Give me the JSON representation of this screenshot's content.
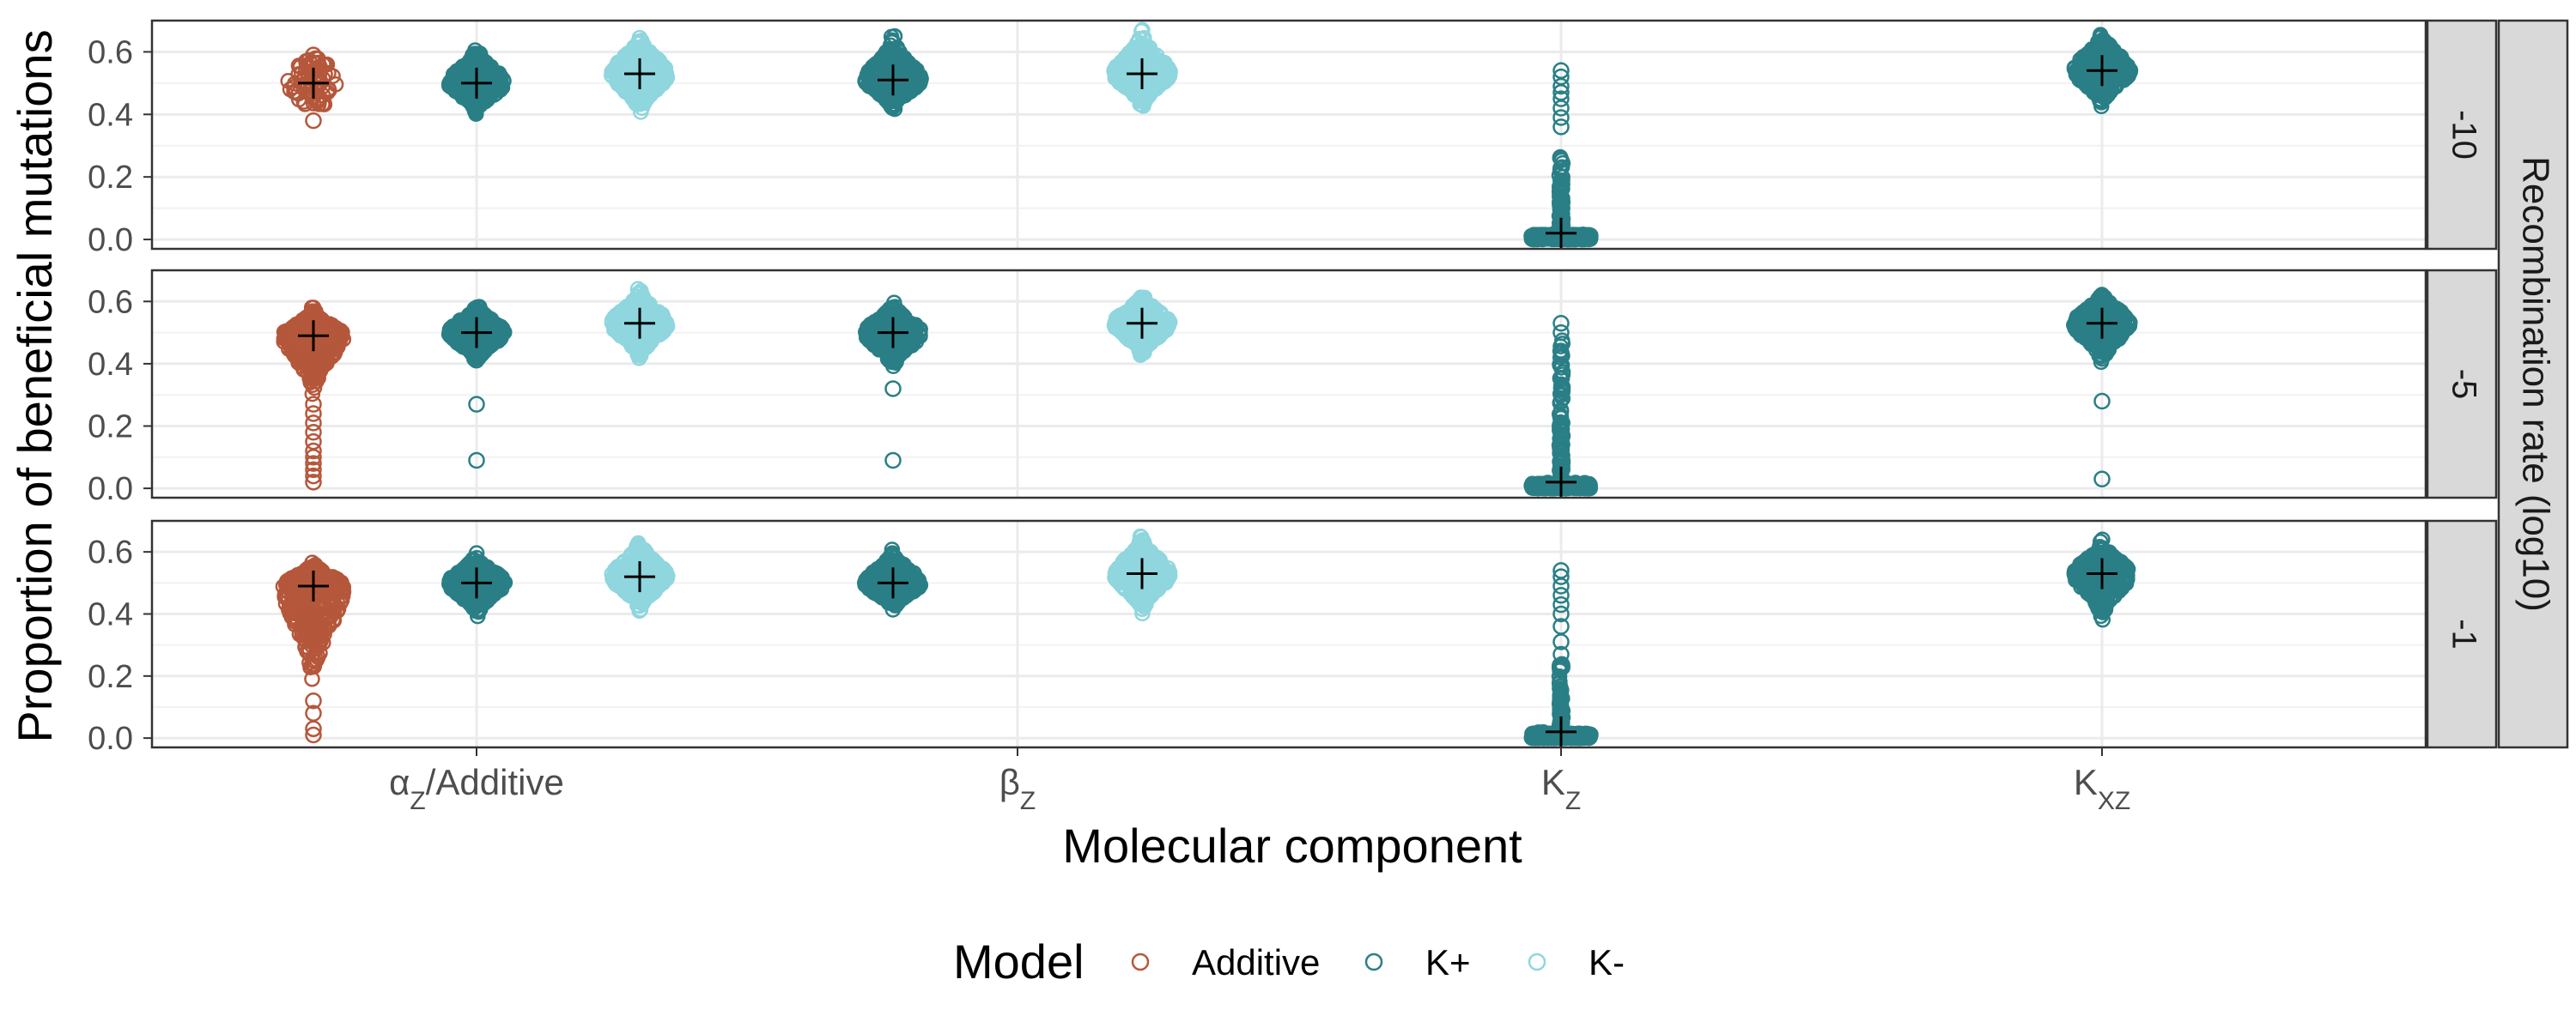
{
  "chart_data": {
    "type": "scatter",
    "subtype": "beeswarm-facets",
    "title": "",
    "xlabel": "Molecular component",
    "ylabel": "Proportion of beneficial mutations",
    "ylim": [
      -0.03,
      0.7
    ],
    "yticks": [
      0.0,
      0.2,
      0.4,
      0.6
    ],
    "ytick_labels": [
      "0.0",
      "0.2",
      "0.4",
      "0.6"
    ],
    "categories": [
      {
        "key": "alpha",
        "main": "α",
        "sub": "Z",
        "suffix": "/Additive"
      },
      {
        "key": "beta",
        "main": "β",
        "sub": "Z",
        "suffix": ""
      },
      {
        "key": "kz",
        "main": "K",
        "sub": "Z",
        "suffix": ""
      },
      {
        "key": "kxz",
        "main": "K",
        "sub": "XZ",
        "suffix": ""
      }
    ],
    "grid": true,
    "facet_title": "Recombination rate (log10)",
    "facets": [
      "-10",
      "-5",
      "-1"
    ],
    "legend": {
      "title": "Model",
      "position": "bottom",
      "entries": [
        {
          "name": "Additive",
          "color": "#b5573b"
        },
        {
          "name": "K+",
          "color": "#2a7f86"
        },
        {
          "name": "K-",
          "color": "#8fd6de"
        }
      ]
    },
    "series_colors": {
      "Additive": "#b5573b",
      "K+": "#2a7f86",
      "K-": "#8fd6de"
    },
    "groups": [
      {
        "facet": "-10",
        "category": "alpha",
        "model": "Additive",
        "mean": 0.5,
        "core": [
          0.43,
          0.58
        ],
        "width": 0.22,
        "outliers": [
          0.38,
          0.59
        ]
      },
      {
        "facet": "-10",
        "category": "alpha",
        "model": "K+",
        "mean": 0.5,
        "core": [
          0.4,
          0.62
        ],
        "width": 0.22,
        "outliers": []
      },
      {
        "facet": "-10",
        "category": "alpha",
        "model": "K-",
        "mean": 0.53,
        "core": [
          0.4,
          0.66
        ],
        "width": 0.22,
        "outliers": []
      },
      {
        "facet": "-10",
        "category": "beta",
        "model": "K+",
        "mean": 0.51,
        "core": [
          0.41,
          0.65
        ],
        "width": 0.22,
        "outliers": []
      },
      {
        "facet": "-10",
        "category": "beta",
        "model": "K-",
        "mean": 0.53,
        "core": [
          0.42,
          0.67
        ],
        "width": 0.22,
        "outliers": []
      },
      {
        "facet": "-10",
        "category": "kz",
        "model": "K+",
        "mean": 0.02,
        "core": [
          0.0,
          0.27
        ],
        "width": 0.23,
        "outliers": [
          0.36,
          0.39,
          0.42,
          0.45,
          0.47,
          0.49,
          0.52,
          0.54
        ]
      },
      {
        "facet": "-10",
        "category": "kxz",
        "model": "K+",
        "mean": 0.54,
        "core": [
          0.42,
          0.67
        ],
        "width": 0.22,
        "outliers": []
      },
      {
        "facet": "-5",
        "category": "alpha",
        "model": "Additive",
        "mean": 0.49,
        "core": [
          0.3,
          0.58
        ],
        "width": 0.24,
        "outliers": [
          0.02,
          0.04,
          0.06,
          0.08,
          0.1,
          0.12,
          0.15,
          0.18,
          0.21,
          0.24,
          0.27
        ]
      },
      {
        "facet": "-5",
        "category": "alpha",
        "model": "K+",
        "mean": 0.5,
        "core": [
          0.4,
          0.6
        ],
        "width": 0.22,
        "outliers": [
          0.09,
          0.27
        ]
      },
      {
        "facet": "-5",
        "category": "alpha",
        "model": "K-",
        "mean": 0.53,
        "core": [
          0.41,
          0.64
        ],
        "width": 0.22,
        "outliers": []
      },
      {
        "facet": "-5",
        "category": "beta",
        "model": "K+",
        "mean": 0.5,
        "core": [
          0.38,
          0.6
        ],
        "width": 0.22,
        "outliers": [
          0.09,
          0.32
        ]
      },
      {
        "facet": "-5",
        "category": "beta",
        "model": "K-",
        "mean": 0.53,
        "core": [
          0.42,
          0.63
        ],
        "width": 0.22,
        "outliers": []
      },
      {
        "facet": "-5",
        "category": "kz",
        "model": "K+",
        "mean": 0.02,
        "core": [
          0.0,
          0.48
        ],
        "width": 0.23,
        "outliers": [
          0.5,
          0.53
        ]
      },
      {
        "facet": "-5",
        "category": "kxz",
        "model": "K+",
        "mean": 0.53,
        "core": [
          0.4,
          0.64
        ],
        "width": 0.22,
        "outliers": [
          0.03,
          0.28
        ]
      },
      {
        "facet": "-1",
        "category": "alpha",
        "model": "Additive",
        "mean": 0.49,
        "core": [
          0.17,
          0.57
        ],
        "width": 0.24,
        "outliers": [
          0.01,
          0.03,
          0.08,
          0.12
        ]
      },
      {
        "facet": "-1",
        "category": "alpha",
        "model": "K+",
        "mean": 0.5,
        "core": [
          0.39,
          0.6
        ],
        "width": 0.22,
        "outliers": []
      },
      {
        "facet": "-1",
        "category": "alpha",
        "model": "K-",
        "mean": 0.52,
        "core": [
          0.41,
          0.64
        ],
        "width": 0.22,
        "outliers": []
      },
      {
        "facet": "-1",
        "category": "beta",
        "model": "K+",
        "mean": 0.5,
        "core": [
          0.41,
          0.61
        ],
        "width": 0.22,
        "outliers": []
      },
      {
        "facet": "-1",
        "category": "beta",
        "model": "K-",
        "mean": 0.53,
        "core": [
          0.4,
          0.65
        ],
        "width": 0.22,
        "outliers": []
      },
      {
        "facet": "-1",
        "category": "kz",
        "model": "K+",
        "mean": 0.02,
        "core": [
          0.0,
          0.25
        ],
        "width": 0.23,
        "outliers": [
          0.27,
          0.31,
          0.36,
          0.4,
          0.43,
          0.46,
          0.49,
          0.52,
          0.54
        ]
      },
      {
        "facet": "-1",
        "category": "kxz",
        "model": "K+",
        "mean": 0.53,
        "core": [
          0.38,
          0.64
        ],
        "width": 0.22,
        "outliers": []
      }
    ]
  }
}
